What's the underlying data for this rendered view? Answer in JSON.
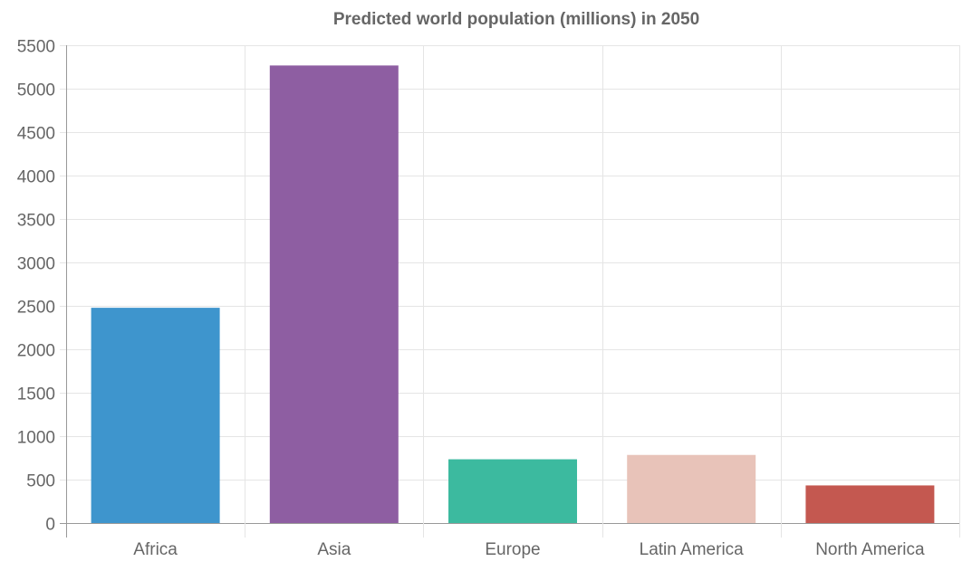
{
  "chart_data": {
    "type": "bar",
    "title": "Predicted world population (millions) in 2050",
    "categories": [
      "Africa",
      "Asia",
      "Europe",
      "Latin America",
      "North America"
    ],
    "values": [
      2478,
      5267,
      734,
      784,
      433
    ],
    "colors": [
      "#3e95cd",
      "#8e5ea2",
      "#3cba9f",
      "#e8c3b9",
      "#c45850"
    ],
    "xlabel": "",
    "ylabel": "",
    "ylim": [
      0,
      5500
    ],
    "yticks": [
      0,
      500,
      1000,
      1500,
      2000,
      2500,
      3000,
      3500,
      4000,
      4500,
      5000,
      5500
    ],
    "grid": true,
    "legend": "none"
  }
}
